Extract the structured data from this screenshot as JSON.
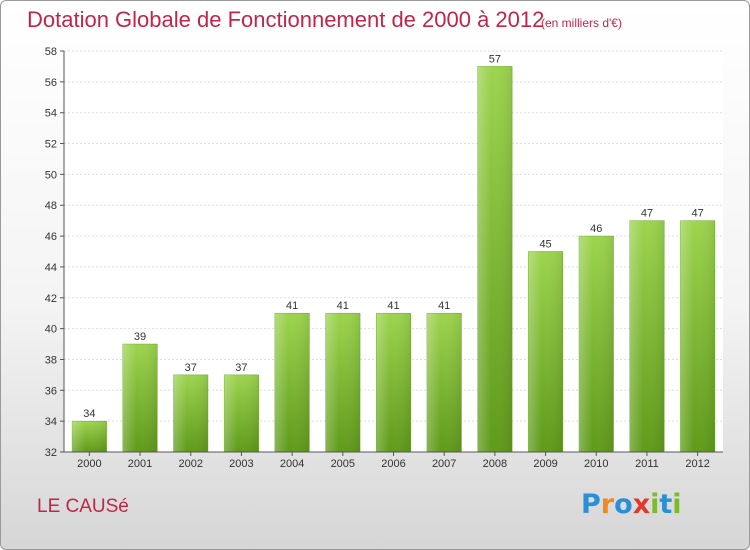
{
  "chart_data": {
    "type": "bar",
    "title": "Dotation Globale de Fonctionnement de 2000 à 2012",
    "subtitle": "(en milliers d'€)",
    "categories": [
      "2000",
      "2001",
      "2002",
      "2003",
      "2004",
      "2005",
      "2006",
      "2007",
      "2008",
      "2009",
      "2010",
      "2011",
      "2012"
    ],
    "values": [
      34,
      39,
      37,
      37,
      41,
      41,
      41,
      41,
      57,
      45,
      46,
      47,
      47
    ],
    "ylim": [
      32,
      58
    ],
    "yticks": [
      32,
      34,
      36,
      38,
      40,
      42,
      44,
      46,
      48,
      50,
      52,
      54,
      56,
      58
    ],
    "xlabel": "",
    "ylabel": "",
    "grid": true,
    "bar_color": "#7fc232",
    "title_color": "#c0264a"
  },
  "footer": {
    "commune_name": "LE CAUSé",
    "logo_text": "Proxiti",
    "logo_colors": [
      "#2a8fd6",
      "#f08a1c",
      "#2a8fd6",
      "#e0392b",
      "#7cba2e",
      "#2a8fd6",
      "#7cba2e"
    ]
  }
}
